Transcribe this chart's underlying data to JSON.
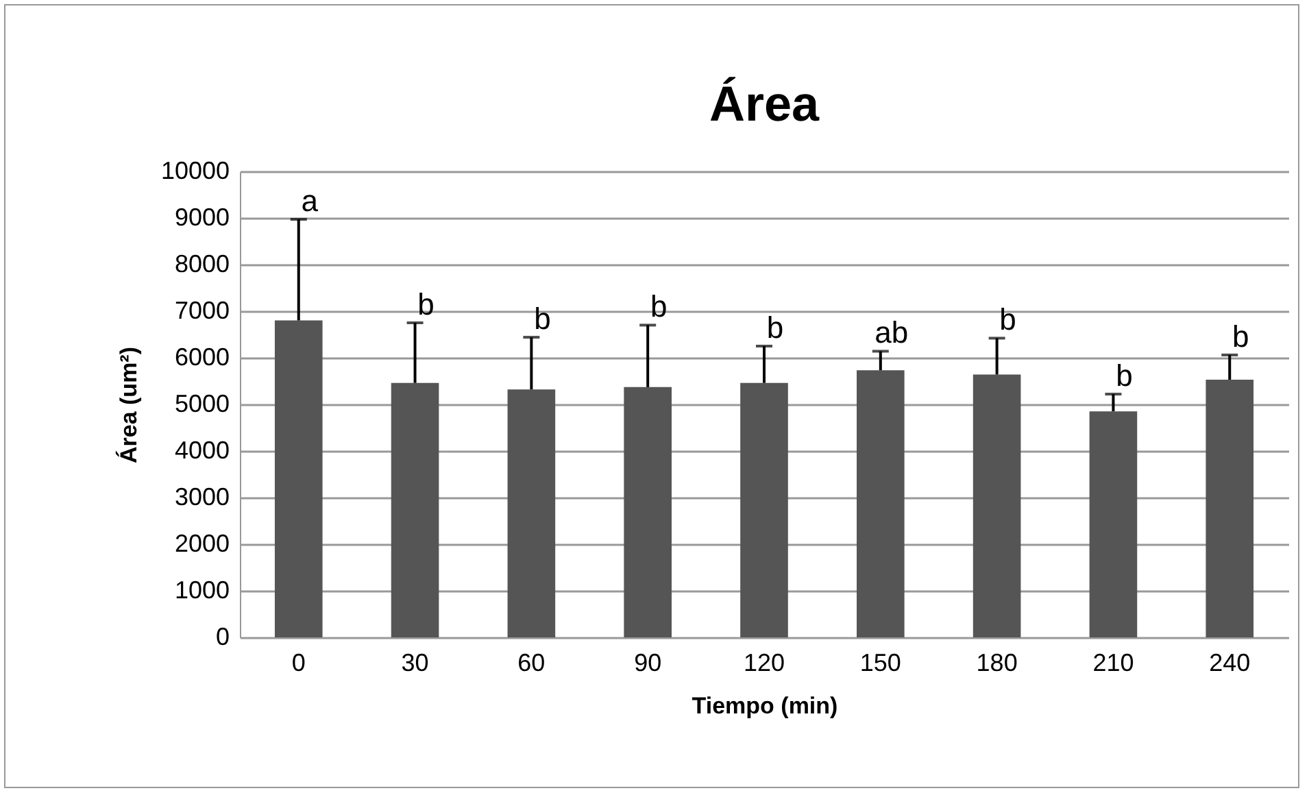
{
  "chart_data": {
    "type": "bar",
    "title": "Área",
    "xlabel": "Tiempo (min)",
    "ylabel": "Área (um²)",
    "categories": [
      "0",
      "30",
      "60",
      "90",
      "120",
      "150",
      "180",
      "210",
      "240"
    ],
    "values": [
      6800,
      5460,
      5320,
      5370,
      5460,
      5730,
      5640,
      4850,
      5530
    ],
    "errors": [
      [
        6800,
        8970
      ],
      [
        5460,
        6750
      ],
      [
        5320,
        6440
      ],
      [
        5370,
        6700
      ],
      [
        5460,
        6250
      ],
      [
        5730,
        6140
      ],
      [
        5640,
        6420
      ],
      [
        4850,
        5220
      ],
      [
        5530,
        6060
      ]
    ],
    "color": "#555555",
    "ylim": [
      0,
      10000
    ],
    "yticks": [
      0,
      1000,
      2000,
      3000,
      4000,
      5000,
      6000,
      7000,
      8000,
      9000,
      10000
    ],
    "grid": "y",
    "annotations": [
      {
        "text": "a",
        "x": "0",
        "y": 8970
      },
      {
        "text": "b",
        "x": "30",
        "y": 6750
      },
      {
        "text": "b",
        "x": "60",
        "y": 6440
      },
      {
        "text": "b",
        "x": "90",
        "y": 6700
      },
      {
        "text": "b",
        "x": "120",
        "y": 6250
      },
      {
        "text": "ab",
        "x": "150",
        "y": 6140
      },
      {
        "text": "b",
        "x": "180",
        "y": 6420
      },
      {
        "text": "b",
        "x": "210",
        "y": 5220
      },
      {
        "text": "b",
        "x": "240",
        "y": 6060
      }
    ]
  }
}
